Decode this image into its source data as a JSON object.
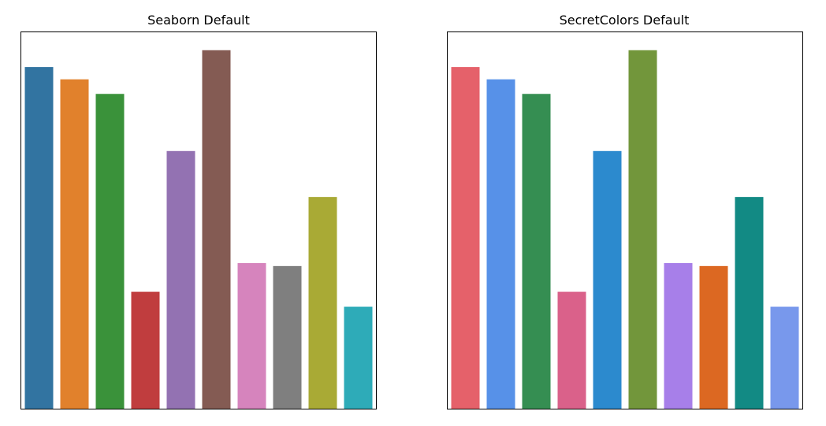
{
  "chart_data": [
    {
      "type": "bar",
      "title": "Seaborn Default",
      "values": [
        9.15,
        8.82,
        8.43,
        3.13,
        6.9,
        9.6,
        3.9,
        3.82,
        5.67,
        2.73
      ],
      "colors": [
        "#3274a1",
        "#e1812c",
        "#3a923a",
        "#c03d3e",
        "#9372b2",
        "#845b53",
        "#d684bd",
        "#7f7f7f",
        "#a9aa35",
        "#2eabb8"
      ],
      "ylim": [
        0,
        10.08
      ],
      "grid": false,
      "axes_ticks_visible": false
    },
    {
      "type": "bar",
      "title": "SecretColors Default",
      "values": [
        9.15,
        8.82,
        8.43,
        3.13,
        6.9,
        9.6,
        3.9,
        3.82,
        5.67,
        2.73
      ],
      "colors": [
        "#e5616a",
        "#5791e8",
        "#358e52",
        "#da618a",
        "#2c8ace",
        "#72963b",
        "#a77fe9",
        "#dc6822",
        "#128a84",
        "#7898ec"
      ],
      "ylim": [
        0,
        10.08
      ],
      "grid": false,
      "axes_ticks_visible": false
    }
  ]
}
